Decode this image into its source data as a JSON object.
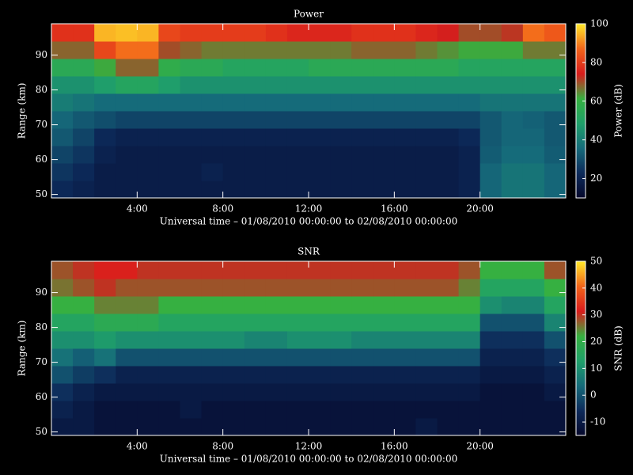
{
  "chart_data": [
    {
      "type": "heatmap",
      "title": "Power",
      "xlabel": "Universal time – 01/08/2010 00:00:00 to 02/08/2010 00:00:00",
      "ylabel": "Range (km)",
      "colorbar_label": "Power (dB)",
      "x": [
        0.5,
        1.5,
        2.5,
        3.5,
        4.5,
        5.5,
        6.5,
        7.5,
        8.5,
        9.5,
        10.5,
        11.5,
        12.5,
        13.5,
        14.5,
        15.5,
        16.5,
        17.5,
        18.5,
        19.5,
        20.5,
        21.5,
        22.5,
        23.5
      ],
      "y": [
        51.5,
        56.5,
        61.5,
        66.5,
        71.5,
        76.5,
        81.5,
        86.5,
        91.5,
        96.5
      ],
      "values": [
        [
          22,
          20,
          18,
          18,
          18,
          18,
          18,
          18,
          18,
          18,
          18,
          18,
          18,
          18,
          18,
          18,
          18,
          18,
          18,
          20,
          35,
          38,
          38,
          35
        ],
        [
          25,
          22,
          18,
          18,
          18,
          18,
          18,
          20,
          18,
          18,
          18,
          18,
          18,
          18,
          18,
          18,
          18,
          18,
          18,
          20,
          35,
          38,
          38,
          35
        ],
        [
          28,
          25,
          20,
          18,
          18,
          18,
          18,
          18,
          18,
          18,
          18,
          18,
          18,
          18,
          18,
          18,
          18,
          18,
          18,
          20,
          33,
          36,
          36,
          33
        ],
        [
          32,
          28,
          22,
          20,
          20,
          20,
          20,
          20,
          20,
          20,
          20,
          20,
          20,
          20,
          20,
          20,
          20,
          20,
          20,
          22,
          32,
          35,
          35,
          32
        ],
        [
          35,
          32,
          30,
          28,
          28,
          28,
          28,
          28,
          28,
          28,
          28,
          28,
          28,
          28,
          28,
          28,
          28,
          28,
          28,
          28,
          32,
          35,
          34,
          32
        ],
        [
          40,
          38,
          36,
          36,
          36,
          36,
          36,
          36,
          36,
          36,
          36,
          36,
          36,
          36,
          36,
          36,
          36,
          36,
          36,
          36,
          38,
          38,
          38,
          38
        ],
        [
          45,
          45,
          48,
          52,
          52,
          48,
          45,
          45,
          45,
          45,
          45,
          45,
          45,
          45,
          45,
          45,
          45,
          45,
          45,
          45,
          45,
          45,
          45,
          45
        ],
        [
          55,
          55,
          62,
          68,
          68,
          58,
          55,
          55,
          52,
          52,
          52,
          52,
          55,
          55,
          55,
          55,
          55,
          55,
          55,
          52,
          52,
          52,
          52,
          52
        ],
        [
          68,
          68,
          82,
          88,
          88,
          70,
          68,
          66,
          66,
          66,
          66,
          66,
          66,
          66,
          68,
          68,
          68,
          66,
          64,
          62,
          62,
          62,
          66,
          66
        ],
        [
          78,
          78,
          95,
          96,
          95,
          82,
          80,
          80,
          80,
          80,
          78,
          76,
          76,
          76,
          78,
          78,
          78,
          76,
          74,
          70,
          70,
          72,
          88,
          85
        ]
      ],
      "xlim": [
        0,
        24
      ],
      "ylim": [
        49,
        99
      ],
      "xticks": [
        {
          "value": 4,
          "label": "4:00"
        },
        {
          "value": 8,
          "label": "8:00"
        },
        {
          "value": 12,
          "label": "12:00"
        },
        {
          "value": 16,
          "label": "16:00"
        },
        {
          "value": 20,
          "label": "20:00"
        }
      ],
      "yticks": [
        50,
        60,
        70,
        80,
        90
      ],
      "clim": [
        10,
        100
      ],
      "cticks": [
        20,
        40,
        60,
        80,
        100
      ],
      "colorscale": [
        "#05082a",
        "#0d2a5a",
        "#156a7a",
        "#1fa06a",
        "#36b040",
        "#d81c1c",
        "#f2641a",
        "#ffe82a"
      ]
    },
    {
      "type": "heatmap",
      "title": "SNR",
      "xlabel": "Universal time – 01/08/2010 00:00:00 to 02/08/2010 00:00:00",
      "ylabel": "Range (km)",
      "colorbar_label": "SNR (dB)",
      "x": [
        0.5,
        1.5,
        2.5,
        3.5,
        4.5,
        5.5,
        6.5,
        7.5,
        8.5,
        9.5,
        10.5,
        11.5,
        12.5,
        13.5,
        14.5,
        15.5,
        16.5,
        17.5,
        18.5,
        19.5,
        20.5,
        21.5,
        22.5,
        23.5
      ],
      "y": [
        51.5,
        56.5,
        61.5,
        66.5,
        71.5,
        76.5,
        81.5,
        86.5,
        91.5,
        96.5
      ],
      "values": [
        [
          -10,
          -10,
          -12,
          -12,
          -12,
          -12,
          -12,
          -12,
          -12,
          -12,
          -12,
          -12,
          -12,
          -12,
          -12,
          -12,
          -12,
          -10,
          -12,
          -12,
          -12,
          -12,
          -12,
          -12
        ],
        [
          -8,
          -10,
          -12,
          -12,
          -12,
          -12,
          -10,
          -12,
          -12,
          -12,
          -12,
          -12,
          -12,
          -12,
          -12,
          -12,
          -12,
          -12,
          -12,
          -12,
          -12,
          -12,
          -12,
          -12
        ],
        [
          -5,
          -8,
          -10,
          -10,
          -10,
          -10,
          -10,
          -10,
          -10,
          -10,
          -10,
          -10,
          -10,
          -10,
          -10,
          -10,
          -10,
          -10,
          -10,
          -10,
          -12,
          -12,
          -12,
          -10
        ],
        [
          0,
          -3,
          -5,
          -8,
          -8,
          -8,
          -8,
          -8,
          -8,
          -8,
          -8,
          -8,
          -8,
          -8,
          -8,
          -8,
          -8,
          -8,
          -8,
          -8,
          -10,
          -10,
          -10,
          -8
        ],
        [
          5,
          2,
          5,
          0,
          0,
          0,
          0,
          0,
          0,
          0,
          0,
          0,
          0,
          0,
          0,
          0,
          0,
          0,
          0,
          0,
          -8,
          -8,
          -8,
          -5
        ],
        [
          10,
          10,
          12,
          10,
          10,
          10,
          10,
          10,
          10,
          8,
          8,
          10,
          10,
          10,
          8,
          8,
          8,
          8,
          8,
          8,
          -5,
          -5,
          -5,
          0
        ],
        [
          15,
          15,
          18,
          18,
          18,
          15,
          15,
          15,
          15,
          15,
          15,
          15,
          15,
          15,
          15,
          15,
          15,
          15,
          15,
          15,
          0,
          0,
          0,
          8
        ],
        [
          22,
          22,
          25,
          25,
          25,
          22,
          22,
          22,
          22,
          22,
          22,
          22,
          22,
          22,
          22,
          22,
          22,
          22,
          22,
          22,
          10,
          8,
          8,
          15
        ],
        [
          26,
          28,
          30,
          28,
          28,
          28,
          28,
          28,
          28,
          28,
          28,
          28,
          28,
          28,
          28,
          28,
          28,
          28,
          28,
          25,
          15,
          15,
          15,
          22
        ],
        [
          28,
          30,
          32,
          32,
          30,
          30,
          30,
          30,
          30,
          30,
          30,
          30,
          30,
          30,
          30,
          30,
          30,
          30,
          30,
          28,
          22,
          22,
          22,
          28
        ]
      ],
      "xlim": [
        0,
        24
      ],
      "ylim": [
        49,
        99
      ],
      "xticks": [
        {
          "value": 4,
          "label": "4:00"
        },
        {
          "value": 8,
          "label": "8:00"
        },
        {
          "value": 12,
          "label": "12:00"
        },
        {
          "value": 16,
          "label": "16:00"
        },
        {
          "value": 20,
          "label": "20:00"
        }
      ],
      "yticks": [
        50,
        60,
        70,
        80,
        90
      ],
      "clim": [
        -15,
        50
      ],
      "cticks": [
        -10,
        0,
        10,
        20,
        30,
        40,
        50
      ],
      "colorscale": [
        "#05082a",
        "#0d2a5a",
        "#156a7a",
        "#1fa06a",
        "#36b040",
        "#d81c1c",
        "#f2641a",
        "#ffe82a"
      ]
    }
  ]
}
